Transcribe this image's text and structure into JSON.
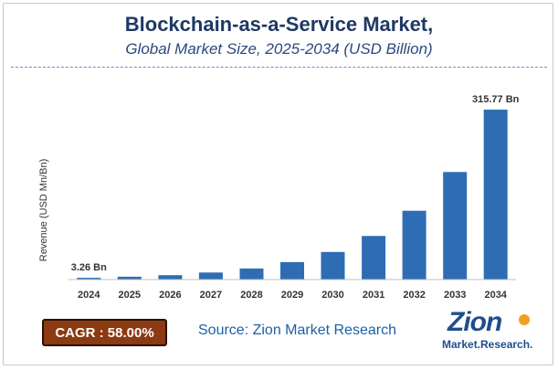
{
  "header": {
    "title": "Blockchain-as-a-Service Market,",
    "subtitle": "Global Market Size, 2025-2034 (USD Billion)"
  },
  "chart_data": {
    "type": "bar",
    "title": "Blockchain-as-a-Service Market,",
    "subtitle": "Global Market Size, 2025-2034 (USD Billion)",
    "xlabel": "",
    "ylabel": "Revenue (USD Mn/Bn)",
    "categories": [
      "2024",
      "2025",
      "2026",
      "2027",
      "2028",
      "2029",
      "2030",
      "2031",
      "2032",
      "2033",
      "2034"
    ],
    "values": [
      3.26,
      5.2,
      8.2,
      13.0,
      20.5,
      32.4,
      51.2,
      80.9,
      127.8,
      199.9,
      315.77
    ],
    "data_labels": [
      {
        "index": 0,
        "text": "3.26 Bn"
      },
      {
        "index": 10,
        "text": "315.77 Bn"
      }
    ],
    "ylim": [
      0,
      330
    ],
    "grid": false,
    "legend": "none",
    "bar_color": "#2e6db4",
    "axis_color": "#bfbfbf"
  },
  "footer": {
    "cagr": "CAGR : 58.00%",
    "source": "Source: Zion Market Research",
    "logo_main": "Zion",
    "logo_sub": "Market.Research."
  },
  "colors": {
    "title": "#1f3864",
    "bar": "#2e6db4",
    "cagr_bg": "#8b3a12",
    "source": "#1f5fa8",
    "logo": "#1f4e8c",
    "logo_accent": "#f0a020"
  }
}
